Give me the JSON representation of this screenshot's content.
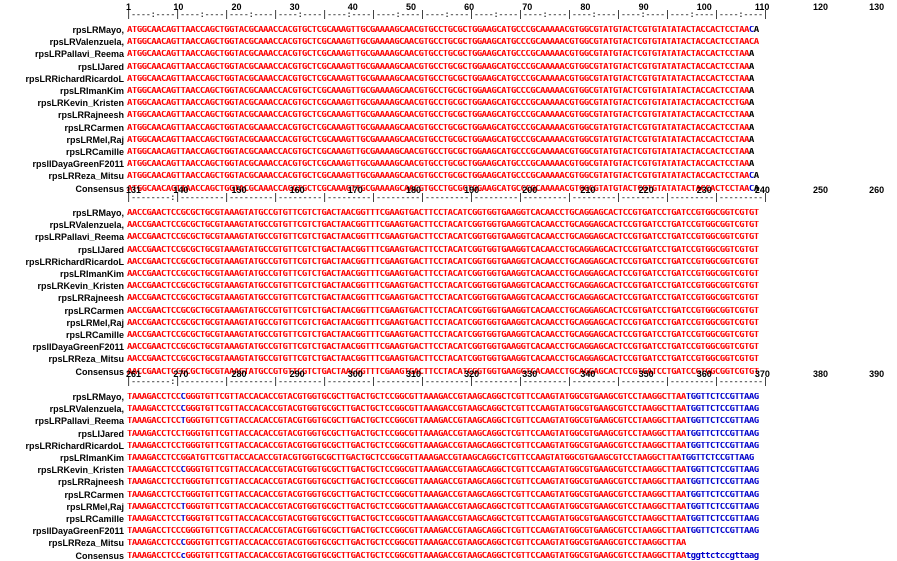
{
  "blocks": [
    {
      "ruler": [
        "1",
        "10",
        "20",
        "30",
        "40",
        "50",
        "60",
        "70",
        "80",
        "90",
        "100",
        "110",
        "120",
        "130"
      ],
      "ruler_line": "|----:----|----:----|----:----|----:----|----:----|----:----|----:----|----:----|----:----|----:----|----:----|----:----|----:----|",
      "rows": [
        {
          "label": "rpsLRMayo,",
          "segs": [
            [
              "r",
              "ATGGCAACAGTTAACCAGCTGGTACGCAAACCACGTGCTCGCAAAGTTGCGAAAAGCAACGTGCCTGCGCTGGAAGCATGCCCGCAAAAACGTGGCGTATGTACTCGTGTATATACTACCACTCCTAA"
            ],
            [
              "b",
              "C"
            ],
            [
              "k",
              "A"
            ]
          ]
        },
        {
          "label": "rpsLRValenzuela,",
          "segs": [
            [
              "r",
              "ATGGCAACAGTTAACCAGCTGGTACGCAAACCACGTGCTCGCAAAGTTGCGAAAAGCAACGTGCCTGCGCTGGAAGCATGCCCGCAAAAACGTGGCGTATGTACTCGTGTATATACTACCACTCCTAACA"
            ]
          ]
        },
        {
          "label": "rpsLRPallavi_Reema",
          "segs": [
            [
              "r",
              "ATGGCAACAGTTAACCAGCTGGTACGCAAACCACGTGCTCGCAAAGTTGCGAAAAGCAACGTGCCTGCGCTGGAAGCATGCCCGCAAAAACGTGGCGTATGTACTCGTGTATATACTACCACTCCTAA"
            ],
            [
              "k",
              "A"
            ]
          ]
        },
        {
          "label": "rpsLIJared",
          "segs": [
            [
              "r",
              "ATGGCAACAGTTAACCAGCTGGTACGCAAACCACGTGCTCGCAAAGTTGCGAAAAGCAACGTGCCTGCGCTGGAAGCATGCCCGCAAAAACGTGGCGTATGTACTCGTGTATATACTACCACTCCTAA"
            ],
            [
              "k",
              "A"
            ]
          ]
        },
        {
          "label": "rpsLRRichardRicardoL",
          "segs": [
            [
              "r",
              "ATGGCAACAGTTAACCAGCTGGTACGCAAACCACGTGCTCGCAAAGTTGCGAAAAGCAACGTGCCTGCGCTGGAAGCATGCCCGCAAAAACGTGGCGTATGTACTCGTGTATATACTACCACTCCTAA"
            ],
            [
              "k",
              "A"
            ]
          ]
        },
        {
          "label": "rpsLRImanKim",
          "segs": [
            [
              "r",
              "ATGGCAACAGTTAACCAGCTGGTACGCAAACCACGTGCTCGCAAAGTTGCGAAAAGCAACGTGCCTGCGCTGGAAGCATGCCCGCAAAAACGTGGCGTATGTACTCGTGTATATACTACCACTCCTAA"
            ],
            [
              "k",
              "A"
            ]
          ]
        },
        {
          "label": "rpsLRKevin_Kristen",
          "segs": [
            [
              "r",
              "ATGGCAACAGTTAACCAGCTGGTACGCAAACCACGTGCTCGCAAAGTTGCGAAAAGCAACGTGCCTGCGCTGGAAGCATGCCCGCAAAAACGTGGCGTATGTACTCGTGTATATACTACCACTCCTGA"
            ],
            [
              "k",
              "A"
            ]
          ]
        },
        {
          "label": "rpsLRRajneesh",
          "segs": [
            [
              "r",
              "ATGGCAACAGTTAACCAGCTGGTACGCAAACCACGTGCTCGCAAAGTTGCGAAAAGCAACGTGCCTGCGCTGGAAGCATGCCCGCAAAAACGTGGCGTATGTACTCGTGTATATACTACCACTCCTAA"
            ],
            [
              "k",
              "A"
            ]
          ]
        },
        {
          "label": "rpsLRCarmen",
          "segs": [
            [
              "r",
              "ATGGCAACAGTTAACCAGCTGGTACGCAAACCACGTGCTCGCAAAGTTGCGAAAAGCAACGTGCCTGCGCTGGAAGCATGCCCGCAAAAACGTGGCGTATGTACTCGTGTATATACTACCACTCCTAA"
            ],
            [
              "k",
              "A"
            ]
          ]
        },
        {
          "label": "rpsLRMel,Raj",
          "segs": [
            [
              "r",
              "ATGGCAACAGTTAACCAGCTGGTACGCAAACCACGTGCTCGCAAAGTTGCGAAAAGCAACGTGCCTGCGCTGGAAGCATGCCCGCAAAAACGTGGCGTATGTACTCGTGTATATACTACCACTCCTAA"
            ],
            [
              "k",
              "A"
            ]
          ]
        },
        {
          "label": "rpsLRCamille",
          "segs": [
            [
              "r",
              "ATGGCAACAGTTAACCAGCTGGTACGCAAACCACGTGCTCGCAAAGTTGCGAAAAGCAACGTGCCTGCGCTGGAAGCATGCCCGCAAAAACGTGGCGTATGTACTCGTGTATATACTACCACTCCTAA"
            ],
            [
              "k",
              "A"
            ]
          ]
        },
        {
          "label": "rpslIDayaGreenF2011",
          "segs": [
            [
              "r",
              "ATGGCAACAGTTAACCAGCTGGTACGCAAACCACGTGCTCGCAAAGTTGCGAAAAGCAACGTGCCTGCGCTGGAAGCATGCCCGCAAAAACGTGGCGTATGTACTCGTGTATATACTACCACTCCTAA"
            ],
            [
              "k",
              "A"
            ]
          ]
        },
        {
          "label": "rpsLRReza_Mitsu",
          "segs": [
            [
              "r",
              "ATGGCAACAGTTAACCAGCTGGTACGCAAACCACGTGCTCGCAAAGTTGCGAAAAGCAACGTGCCTGCGCTGGAAGCATGCCCGCAAAAACGTGGCGTATGTACTCGTGTATATACTACCACTCCTAA"
            ],
            [
              "b",
              "C"
            ],
            [
              "k",
              "A"
            ]
          ]
        },
        {
          "label": "Consensus",
          "segs": [
            [
              "r",
              "ATGGCAACAGTTAACCAGCTGGTACGCAAACCACGTGCTCGCAAAGTTGCGAAAAGCAACGTGCCTGCGCTGGAAGCATGCCCGCAAAAACGTGGCGTATGTACTCGTGTATATACTACCACTCCTAA"
            ],
            [
              "b",
              "C"
            ],
            [
              "k",
              "A"
            ]
          ]
        }
      ]
    },
    {
      "ruler": [
        "131",
        "140",
        "150",
        "160",
        "170",
        "180",
        "190",
        "200",
        "210",
        "220",
        "230",
        "240",
        "250",
        "260"
      ],
      "ruler_line": "|--------:|---------|---------|---------|---------|---------|---------|---------|---------|---------|---------|---------|---------|",
      "rows": [
        {
          "label": "rpsLRMayo,",
          "segs": [
            [
              "r",
              "AACCGAACTCCGCGCTGCGTAAAGTATGCCGTGTTCGTCTGACTAACGGTTTCGAAGTGACTTCCTACATCGGTGGTGAAGGTCACAACCTGCAGGAGCACTCCGTGATCCTGATCCGTGGCGGTCGTGT"
            ]
          ]
        },
        {
          "label": "rpsLRValenzuela,",
          "segs": [
            [
              "r",
              "AACCGAACTCCGCGCTGCGTAAAGTATGCCGTGTTCGTCTGACTAACGGTTTCGAAGTGACTTCCTACATCGGTGGTGAAGGTCACAACCTGCAGGAGCACTCCGTGATCCTGATCCGTGGCGGTCGTGT"
            ]
          ]
        },
        {
          "label": "rpsLRPallavi_Reema",
          "segs": [
            [
              "r",
              "AACCGAACTCCGCGCTGCGTAAAGTATGCCGTGTTCGTCTGACTAACGGTTTCGAAGTGACTTCCTACATCGGTGGTGAAGGTCACAACCTGCAGGAGCACTCCGTGATCCTGATCCGTGGCGGTCGTGT"
            ]
          ]
        },
        {
          "label": "rpsLIJared",
          "segs": [
            [
              "r",
              "AACCGAACTCCGCGCTGCGTAAAGTATGCCGTGTTCGTCTGACTAACGGTTTCGAAGTGACTTCCTACATCGGTGGTGAAGGTCACAACCTGCAGGAGCACTCCGTGATCCTGATCCGTGGCGGTCGTGT"
            ]
          ]
        },
        {
          "label": "rpsLRRichardRicardoL",
          "segs": [
            [
              "r",
              "AACCGAACTCCGCGCTGCGTAAAGTATGCCGTGTTCGTCTGACTAACGGTTTCGAAGTGACTTCCTACATCGGTGGTGAAGGTCACAACCTGCAGGAGCACTCCGTGATCCTGATCCGTGGCGGTCGTGT"
            ]
          ]
        },
        {
          "label": "rpsLRImanKim",
          "segs": [
            [
              "r",
              "AACCGAACTCCGCGCTGCGTAAAGTATGCCGTGTTCGTCTGACTAACGGTTTCGAAGTGACTTCCTACATCGGTGGTGAAGGTCACAACCTGCAGGAGCACTCCGTGATCCTGATCCGTGGCGGTCGTGT"
            ]
          ]
        },
        {
          "label": "rpsLRKevin_Kristen",
          "segs": [
            [
              "r",
              "AACCGAACTCCGCGCTGCGTAAAGTATGCCGTGTTCGTCTGACTAACGGTTTCGAAGTGACTTCCTACATCGGTGGTGAAGGTCACAACCTGCAGGAGCACTCCGTGATCCTGATCCGTGGCGGTCGTGT"
            ]
          ]
        },
        {
          "label": "rpsLRRajneesh",
          "segs": [
            [
              "r",
              "AACCGAACTCCGCGCTGCGTAAAGTATGCCGTGTTCGTCTGACTAACGGTTTCGAAGTGACTTCCTACATCGGTGGTGAAGGTCACAACCTGCAGGAGCACTCCGTGATCCTGATCCGTGGCGGTCGTGT"
            ]
          ]
        },
        {
          "label": "rpsLRCarmen",
          "segs": [
            [
              "r",
              "AACCGAACTCCGCGCTGCGTAAAGTATGCCGTGTTCGTCTGACTAACGGTTTCGAAGTGACTTCCTACATCGGTGGTGAAGGTCACAACCTGCAGGAGCACTCCGTGATCCTGATCCGTGGCGGTCGTGT"
            ]
          ]
        },
        {
          "label": "rpsLRMel,Raj",
          "segs": [
            [
              "r",
              "AACCGAACTCCGCGCTGCGTAAAGTATGCCGTGTTCGTCTGACTAACGGTTTCGAAGTGACTTCCTACATCGGTGGTGAAGGTCACAACCTGCAGGAGCACTCCGTGATCCTGATCCGTGGCGGTCGTGT"
            ]
          ]
        },
        {
          "label": "rpsLRCamille",
          "segs": [
            [
              "r",
              "AACCGAACTCCGCGCTGCGTAAAGTATGCCGTGTTCGTCTGACTAACGGTTTCGAAGTGACTTCCTACATCGGTGGTGAAGGTCACAACCTGCAGGAGCACTCCGTGATCCTGATCCGTGGCGGTCGTGT"
            ]
          ]
        },
        {
          "label": "rpslIDayaGreenF2011",
          "segs": [
            [
              "r",
              "AACCGAACTCCGCGCTGCGTAAAGTATGCCGTGTTCGTCTGACTAACGGTTTCGAAGTGACTTCCTACATCGGTGGTGAAGGTCACAACCTGCAGGAGCACTCCGTGATCCTGATCCGTGGCGGTCGTGT"
            ]
          ]
        },
        {
          "label": "rpsLRReza_Mitsu",
          "segs": [
            [
              "r",
              "AACCGAACTCCGCGCTGCGTAAAGTATGCCGTGTTCGTCTGACTAACGGTTTCGAAGTGACTTCCTACATCGGTGGTGAAGGTCACAACCTGCAGGAGCACTCCGTGATCCTGATCCGTGGCGGTCGTGT"
            ]
          ]
        },
        {
          "label": "Consensus",
          "segs": [
            [
              "r",
              "AACCGAACTCCGCGCTGCGTAAAGTATGCCGTGTTCGTCTGACTAACGGTTTCGAAGTGACTTCCTACATCGGTGGTGAAGGTCACAACCTGCAGGAGCACTCCGTGATCCTGATCCGTGGCGGTCGTGT"
            ]
          ]
        }
      ]
    },
    {
      "ruler": [
        "261",
        "270",
        "280",
        "290",
        "300",
        "310",
        "320",
        "330",
        "340",
        "350",
        "360",
        "370",
        "380",
        "390"
      ],
      "ruler_line": "|--------:|---------|---------|---------|---------|---------|---------|---------|---------|---------|---------|---------|---------|",
      "rows": [
        {
          "label": "rpsLRMayo,",
          "segs": [
            [
              "r",
              "TAAAGACCTCC"
            ],
            [
              "b",
              "C"
            ],
            [
              "r",
              "GGGTGTTCGTTACCACACCGTACGTGGTGCGCTTGACTGCTCCGGCGTTAAAGACCGTAAGCAGGCTCGTTCCAAGTATGGCGTGAAGCGTCCTAAGGCTTAA"
            ],
            [
              "b",
              "TGGTTCTCCGTTAAG"
            ]
          ]
        },
        {
          "label": "rpsLRValenzuela,",
          "segs": [
            [
              "r",
              "TAAAGACCTCC"
            ],
            [
              "b",
              "C"
            ],
            [
              "r",
              "GGGTGTTCGTTACCACACCGTACGTGGTGCGCTTGACTGCTCCGGCGTTAAAGACCGTAAGCAGGCTCGTTCCAAGTATGGCGTGAAGCGTCCTAAGGCTTAA"
            ],
            [
              "b",
              "TGGTTCTCCGTTAAG"
            ]
          ]
        },
        {
          "label": "rpsLRPallavi_Reema",
          "segs": [
            [
              "r",
              "TAAAGACCTCC"
            ],
            [
              "b",
              "T"
            ],
            [
              "r",
              "GGGTGTTCGTTACCACACCGTACGTGGTGCGCTTGACTGCTCCGGCGTTAAAGACCGTAAGCAGGCTCGTTCCAAGTATGGCGTGAAGCGTCCTAAGGCTTAA"
            ],
            [
              "b",
              "TGGTTCTCCGTTAAG"
            ]
          ]
        },
        {
          "label": "rpsLIJared",
          "segs": [
            [
              "r",
              "TAAAGACCTCCTGGGTGTTCGTTACCACACCGTACGTGGTGCGCTTGACTGCTCCGGCGTTAAAGACCGTAAGCAGGCTCGTTCCAAGTATGGCGTGAAGCGTCCTAAGGCTTAA"
            ],
            [
              "b",
              "TGGTTCTCCGTTAAG"
            ]
          ]
        },
        {
          "label": "rpsLRRichardRicardoL",
          "segs": [
            [
              "r",
              "TAAAGACCTCCTGGGTGTTCGTTACCACACCGTACGTGGTGCGCTTGACTGCTCCGGCGTTAAAGACCGTAAGCAGGCTCGTTCCAAGTATGGCGTGAAGCGTCCTAAGGCTTAA"
            ],
            [
              "b",
              "TGGTTCTCCGTTAAG"
            ]
          ]
        },
        {
          "label": "rpsLRImanKim",
          "segs": [
            [
              "r",
              "TAAAGACCTCCGGATGTTCGTTACCACACCGTACGTGGTGCGCTTGACTGCTCCGGCGTTAAAGACCGTAAGCAGGCTCGTTCCAAGTATGGCGTGAAGCGTCCTAAGGCTTAA"
            ],
            [
              "b",
              "TGGTTCTCCGTTAAG"
            ]
          ]
        },
        {
          "label": "rpsLRKevin_Kristen",
          "segs": [
            [
              "r",
              "TAAAGACCTCC"
            ],
            [
              "b",
              "C"
            ],
            [
              "r",
              "GGGTGTTCGTTACCACACCGTACGTGGTGCGCTTGACTGCTCCGGCGTTAAAGACCGTAAGCAGGCTCGTTCCAAGTATGGCGTGAAGCGTCCTAAGGCTTAA"
            ],
            [
              "b",
              "TGGTTCTCCGTTAAG"
            ]
          ]
        },
        {
          "label": "rpsLRRajneesh",
          "segs": [
            [
              "r",
              "TAAAGACCTCCTGGGTGTTCGTTACCACACCGTACGTGGTGCGCTTGACTGCTCCGGCGTTAAAGACCGTAAGCAGGCTCGTTCCAAGTATGGCGTGAAGCGTCCTAAGGCTTAA"
            ],
            [
              "b",
              "TGGTTCTCCGTTAAG"
            ]
          ]
        },
        {
          "label": "rpsLRCarmen",
          "segs": [
            [
              "r",
              "TAAAGACCTCCTGGGTGTTCGTTACCACACCGTACGTGGTGCGCTTGACTGCTCCGGCGTTAAAGACCGTAAGCAGGCTCGTTCCAAGTATGGCGTGAAGCGTCCTAAGGCTTAA"
            ],
            [
              "b",
              "TGGTTCTCCGTTAAG"
            ]
          ]
        },
        {
          "label": "rpsLRMel,Raj",
          "segs": [
            [
              "r",
              "TAAAGACCTCC"
            ],
            [
              "b",
              "T"
            ],
            [
              "r",
              "GGGTGTTCGTTACCACACCGTACGTGGTGCGCTTGACTGCTCCGGCGTTAAAGACCGTAAGCAGGCTCGTTCCAAGTATGGCGTGAAGCGTCCTAAGGCTTAA"
            ],
            [
              "b",
              "TGGTTCTCCGTTAAG"
            ]
          ]
        },
        {
          "label": "rpsLRCamille",
          "segs": [
            [
              "r",
              "TAAAGACCTCC"
            ],
            [
              "b",
              "T"
            ],
            [
              "r",
              "GGGTGTTCGTTACCACACCGTACGTGGTGCGCTTGACTGCTCCGGCGTTAAAGACCGTAAGCAGGCTCGTTCCAAGTATGGCGTGAAGCGTCCTAAGGCTTAA"
            ],
            [
              "b",
              "TGGTTCTCCGTTAAG"
            ]
          ]
        },
        {
          "label": "rpslIDayaGreenF2011",
          "segs": [
            [
              "r",
              "TAAAGACCTCCCGGGTGTTCGTTACCACACCGTACGTGGTGCGCTTGACTGCTCCGGCGTTAAAGACCGTAAGCAGGCTCGTTCCAAGTATGGCGTGAAGCGTCCTAAGGCTTAA"
            ],
            [
              "b",
              "TGGTTCTCCGTTAAG"
            ]
          ]
        },
        {
          "label": "rpsLRReza_Mitsu",
          "segs": [
            [
              "r",
              "TAAAGACCTCC"
            ],
            [
              "b",
              "C"
            ],
            [
              "r",
              "GGGTGTTCGTTACCACACCGTACGTGGTGCGCTTGACTGCTCCGGCGTTAAAGACCGTAAGCAGGCTCGTTCCAAGTATGGCGTGAAGCGTCCTAAGGCTTAA"
            ]
          ]
        },
        {
          "label": "Consensus",
          "segs": [
            [
              "r",
              "TAAAGACCTCC"
            ],
            [
              "b",
              "c"
            ],
            [
              "r",
              "GGGTGTTCGTTACCACACCGTACGTGGTGCGCTTGACTGCTCCGGCGTTAAAGACCGTAAGCAGGCTCGTTCCAAGTATGGCGTGAAGCGTCCTAAGGCTTAA"
            ],
            [
              "b",
              "tggttctccgttaag"
            ]
          ]
        }
      ]
    }
  ]
}
